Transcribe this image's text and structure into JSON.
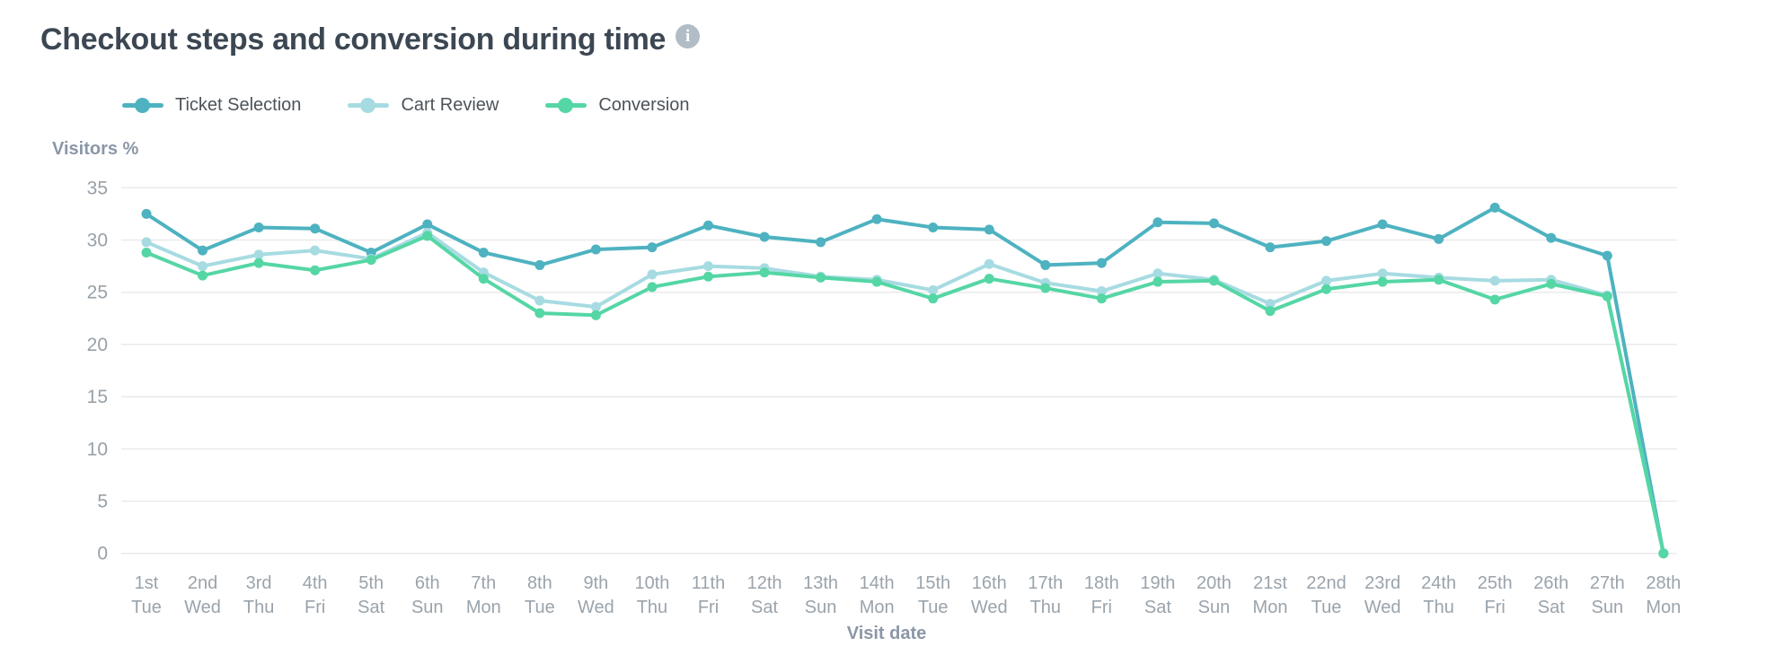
{
  "header": {
    "title": "Checkout steps and conversion during time",
    "info_icon": "i"
  },
  "colors": {
    "title_text": "#3c4753",
    "legend_text": "#4c5359",
    "info_icon_bg": "#b1bcc6",
    "grid": "#e9eaeb",
    "y_tick_text": "#98a1a8",
    "x_tick_text": "#9aa3ab",
    "axis_title_text": "#8b97a7",
    "ticket_selection": "#4eb2c0",
    "cart_review": "#a7dbe2",
    "conversion": "#55d6a5"
  },
  "legend": {
    "items": [
      {
        "label": "Ticket Selection"
      },
      {
        "label": "Cart Review"
      },
      {
        "label": "Conversion"
      }
    ]
  },
  "chart_data": {
    "type": "line",
    "title": "Checkout steps and conversion during time",
    "xlabel": "Visit date",
    "ylabel": "Visitors %",
    "ylim": [
      0,
      35
    ],
    "y_ticks": [
      0,
      5,
      10,
      15,
      20,
      25,
      30,
      35
    ],
    "grid": true,
    "legend_position": "top-left",
    "categories": [
      "1st Tue",
      "2nd Wed",
      "3rd Thu",
      "4th Fri",
      "5th Sat",
      "6th Sun",
      "7th Mon",
      "8th Tue",
      "9th Wed",
      "10th Thu",
      "11th Fri",
      "12th Sat",
      "13th Sun",
      "14th Mon",
      "15th Tue",
      "16th Wed",
      "17th Thu",
      "18th Fri",
      "19th Sat",
      "20th Sun",
      "21st Mon",
      "22nd Tue",
      "23rd Wed",
      "24th Thu",
      "25th Fri",
      "26th Sat",
      "27th Sun",
      "28th Mon"
    ],
    "series": [
      {
        "name": "Ticket Selection",
        "color": "#4eb2c0",
        "values": [
          32.5,
          29.0,
          31.2,
          31.1,
          28.8,
          31.5,
          28.8,
          27.6,
          29.1,
          29.3,
          31.4,
          30.3,
          29.8,
          32.0,
          31.2,
          31.0,
          27.6,
          27.8,
          31.7,
          31.6,
          29.3,
          29.9,
          31.5,
          30.1,
          33.1,
          30.2,
          28.5,
          0
        ]
      },
      {
        "name": "Cart Review",
        "color": "#a7dbe2",
        "values": [
          29.8,
          27.5,
          28.6,
          29.0,
          28.2,
          30.7,
          26.9,
          24.2,
          23.6,
          26.7,
          27.5,
          27.3,
          26.5,
          26.2,
          25.2,
          27.7,
          25.9,
          25.1,
          26.8,
          26.2,
          23.9,
          26.1,
          26.8,
          26.4,
          26.1,
          26.2,
          24.7,
          0
        ]
      },
      {
        "name": "Conversion",
        "color": "#55d6a5",
        "values": [
          28.8,
          26.6,
          27.8,
          27.1,
          28.1,
          30.4,
          26.3,
          23.0,
          22.8,
          25.5,
          26.5,
          26.9,
          26.4,
          26.0,
          24.4,
          26.3,
          25.4,
          24.4,
          26.0,
          26.1,
          23.2,
          25.3,
          26.0,
          26.2,
          24.3,
          25.8,
          24.6,
          0
        ]
      }
    ]
  }
}
